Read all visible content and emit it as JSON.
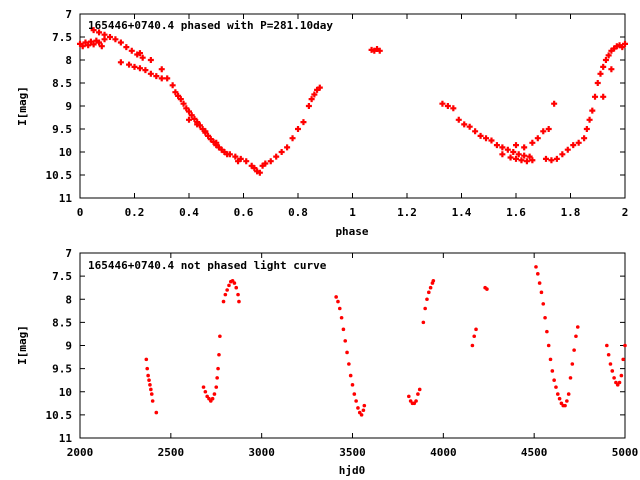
{
  "chart_data": [
    {
      "type": "scatter",
      "title": "165446+0740.4 phased with P=281.10day",
      "xlabel": "phase",
      "ylabel": "I[mag]",
      "xlim": [
        0,
        2
      ],
      "ylim": [
        11,
        7
      ],
      "y_inverted": true,
      "xticks": [
        "0",
        "0.2",
        "0.4",
        "0.6",
        "0.8",
        "1",
        "1.2",
        "1.4",
        "1.6",
        "1.8",
        "2"
      ],
      "xtick_values": [
        0,
        0.2,
        0.4,
        0.6,
        0.8,
        1.0,
        1.2,
        1.4,
        1.6,
        1.8,
        2.0
      ],
      "yticks": [
        "7",
        "7.5",
        "8",
        "8.5",
        "9",
        "9.5",
        "10",
        "10.5",
        "11"
      ],
      "ytick_values": [
        7,
        7.5,
        8,
        8.5,
        9,
        9.5,
        10,
        10.5,
        11
      ],
      "marker": "cross",
      "color": "#ff0000",
      "points": [
        [
          0.0,
          7.65
        ],
        [
          0.01,
          7.7
        ],
        [
          0.02,
          7.62
        ],
        [
          0.03,
          7.68
        ],
        [
          0.04,
          7.6
        ],
        [
          0.05,
          7.66
        ],
        [
          0.06,
          7.58
        ],
        [
          0.07,
          7.62
        ],
        [
          0.08,
          7.7
        ],
        [
          0.09,
          7.55
        ],
        [
          0.05,
          7.35
        ],
        [
          0.07,
          7.4
        ],
        [
          0.09,
          7.45
        ],
        [
          0.11,
          7.5
        ],
        [
          0.13,
          7.55
        ],
        [
          0.15,
          7.62
        ],
        [
          0.17,
          7.72
        ],
        [
          0.19,
          7.8
        ],
        [
          0.21,
          7.88
        ],
        [
          0.23,
          7.95
        ],
        [
          0.15,
          8.05
        ],
        [
          0.18,
          8.1
        ],
        [
          0.2,
          8.15
        ],
        [
          0.22,
          8.18
        ],
        [
          0.24,
          8.22
        ],
        [
          0.26,
          8.3
        ],
        [
          0.28,
          8.35
        ],
        [
          0.3,
          8.4
        ],
        [
          0.22,
          7.85
        ],
        [
          0.26,
          8.0
        ],
        [
          0.3,
          8.2
        ],
        [
          0.32,
          8.4
        ],
        [
          0.34,
          8.55
        ],
        [
          0.35,
          8.7
        ],
        [
          0.36,
          8.78
        ],
        [
          0.37,
          8.85
        ],
        [
          0.38,
          8.95
        ],
        [
          0.39,
          9.05
        ],
        [
          0.4,
          9.12
        ],
        [
          0.41,
          9.2
        ],
        [
          0.42,
          9.28
        ],
        [
          0.43,
          9.35
        ],
        [
          0.44,
          9.42
        ],
        [
          0.45,
          9.5
        ],
        [
          0.46,
          9.58
        ],
        [
          0.47,
          9.65
        ],
        [
          0.48,
          9.72
        ],
        [
          0.49,
          9.78
        ],
        [
          0.5,
          9.85
        ],
        [
          0.51,
          9.9
        ],
        [
          0.52,
          9.95
        ],
        [
          0.53,
          10.0
        ],
        [
          0.55,
          10.05
        ],
        [
          0.57,
          10.1
        ],
        [
          0.59,
          10.15
        ],
        [
          0.61,
          10.2
        ],
        [
          0.63,
          10.3
        ],
        [
          0.64,
          10.35
        ],
        [
          0.65,
          10.42
        ],
        [
          0.66,
          10.45
        ],
        [
          0.67,
          10.3
        ],
        [
          0.68,
          10.25
        ],
        [
          0.7,
          10.2
        ],
        [
          0.72,
          10.1
        ],
        [
          0.74,
          10.0
        ],
        [
          0.76,
          9.9
        ],
        [
          0.78,
          9.7
        ],
        [
          0.8,
          9.5
        ],
        [
          0.82,
          9.35
        ],
        [
          0.84,
          9.0
        ],
        [
          0.85,
          8.85
        ],
        [
          0.86,
          8.75
        ],
        [
          0.87,
          8.65
        ],
        [
          0.88,
          8.6
        ],
        [
          0.4,
          9.3
        ],
        [
          0.43,
          9.4
        ],
        [
          0.46,
          9.55
        ],
        [
          0.5,
          9.8
        ],
        [
          0.54,
          10.05
        ],
        [
          0.58,
          10.2
        ],
        [
          1.07,
          7.78
        ],
        [
          1.08,
          7.8
        ],
        [
          1.09,
          7.76
        ],
        [
          1.1,
          7.8
        ],
        [
          1.33,
          8.95
        ],
        [
          1.35,
          9.0
        ],
        [
          1.37,
          9.05
        ],
        [
          1.39,
          9.3
        ],
        [
          1.41,
          9.4
        ],
        [
          1.43,
          9.45
        ],
        [
          1.45,
          9.55
        ],
        [
          1.47,
          9.65
        ],
        [
          1.49,
          9.7
        ],
        [
          1.51,
          9.75
        ],
        [
          1.53,
          9.85
        ],
        [
          1.55,
          9.9
        ],
        [
          1.57,
          9.95
        ],
        [
          1.59,
          10.0
        ],
        [
          1.61,
          10.05
        ],
        [
          1.63,
          10.08
        ],
        [
          1.65,
          10.1
        ],
        [
          1.55,
          10.05
        ],
        [
          1.58,
          10.12
        ],
        [
          1.6,
          10.15
        ],
        [
          1.62,
          10.18
        ],
        [
          1.64,
          10.2
        ],
        [
          1.66,
          10.18
        ],
        [
          1.6,
          9.85
        ],
        [
          1.63,
          9.9
        ],
        [
          1.66,
          9.8
        ],
        [
          1.68,
          9.7
        ],
        [
          1.7,
          9.55
        ],
        [
          1.72,
          9.5
        ],
        [
          1.74,
          8.95
        ],
        [
          1.71,
          10.15
        ],
        [
          1.73,
          10.18
        ],
        [
          1.75,
          10.15
        ],
        [
          1.77,
          10.05
        ],
        [
          1.79,
          9.95
        ],
        [
          1.81,
          9.85
        ],
        [
          1.83,
          9.8
        ],
        [
          1.85,
          9.7
        ],
        [
          1.86,
          9.5
        ],
        [
          1.87,
          9.3
        ],
        [
          1.88,
          9.1
        ],
        [
          1.89,
          8.8
        ],
        [
          1.9,
          8.5
        ],
        [
          1.91,
          8.3
        ],
        [
          1.92,
          8.15
        ],
        [
          1.93,
          8.0
        ],
        [
          1.94,
          7.9
        ],
        [
          1.95,
          7.8
        ],
        [
          1.96,
          7.75
        ],
        [
          1.97,
          7.7
        ],
        [
          1.98,
          7.68
        ],
        [
          1.99,
          7.72
        ],
        [
          2.0,
          7.65
        ],
        [
          1.92,
          8.8
        ],
        [
          1.95,
          8.2
        ]
      ]
    },
    {
      "type": "scatter",
      "title": "165446+0740.4 not phased light curve",
      "xlabel": "hjd0",
      "ylabel": "I[mag]",
      "xlim": [
        2000,
        5000
      ],
      "ylim": [
        11,
        7
      ],
      "y_inverted": true,
      "xticks": [
        "2000",
        "2500",
        "3000",
        "3500",
        "4000",
        "4500",
        "5000"
      ],
      "xtick_values": [
        2000,
        2500,
        3000,
        3500,
        4000,
        4500,
        5000
      ],
      "yticks": [
        "7",
        "7.5",
        "8",
        "8.5",
        "9",
        "9.5",
        "10",
        "10.5",
        "11"
      ],
      "ytick_values": [
        7,
        7.5,
        8,
        8.5,
        9,
        9.5,
        10,
        10.5,
        11
      ],
      "marker": "dot",
      "color": "#ff0000",
      "points": [
        [
          2365,
          9.3
        ],
        [
          2370,
          9.5
        ],
        [
          2375,
          9.65
        ],
        [
          2380,
          9.75
        ],
        [
          2385,
          9.85
        ],
        [
          2390,
          9.95
        ],
        [
          2395,
          10.05
        ],
        [
          2400,
          10.2
        ],
        [
          2420,
          10.45
        ],
        [
          2680,
          9.9
        ],
        [
          2690,
          10.0
        ],
        [
          2700,
          10.1
        ],
        [
          2710,
          10.15
        ],
        [
          2720,
          10.2
        ],
        [
          2730,
          10.15
        ],
        [
          2740,
          10.05
        ],
        [
          2750,
          9.9
        ],
        [
          2755,
          9.7
        ],
        [
          2760,
          9.5
        ],
        [
          2765,
          9.2
        ],
        [
          2770,
          8.8
        ],
        [
          2790,
          8.05
        ],
        [
          2800,
          7.9
        ],
        [
          2810,
          7.8
        ],
        [
          2820,
          7.7
        ],
        [
          2830,
          7.62
        ],
        [
          2840,
          7.6
        ],
        [
          2850,
          7.65
        ],
        [
          2860,
          7.75
        ],
        [
          2870,
          7.9
        ],
        [
          2875,
          8.05
        ],
        [
          3410,
          7.95
        ],
        [
          3420,
          8.05
        ],
        [
          3430,
          8.2
        ],
        [
          3440,
          8.4
        ],
        [
          3450,
          8.65
        ],
        [
          3460,
          8.9
        ],
        [
          3470,
          9.15
        ],
        [
          3480,
          9.4
        ],
        [
          3490,
          9.65
        ],
        [
          3500,
          9.85
        ],
        [
          3510,
          10.05
        ],
        [
          3520,
          10.2
        ],
        [
          3530,
          10.35
        ],
        [
          3540,
          10.45
        ],
        [
          3550,
          10.5
        ],
        [
          3560,
          10.4
        ],
        [
          3565,
          10.3
        ],
        [
          3810,
          10.1
        ],
        [
          3820,
          10.2
        ],
        [
          3830,
          10.25
        ],
        [
          3840,
          10.25
        ],
        [
          3850,
          10.2
        ],
        [
          3860,
          10.05
        ],
        [
          3870,
          9.95
        ],
        [
          3890,
          8.5
        ],
        [
          3900,
          8.2
        ],
        [
          3910,
          8.0
        ],
        [
          3920,
          7.85
        ],
        [
          3930,
          7.75
        ],
        [
          3940,
          7.65
        ],
        [
          3945,
          7.6
        ],
        [
          4160,
          9.0
        ],
        [
          4170,
          8.8
        ],
        [
          4180,
          8.65
        ],
        [
          4230,
          7.75
        ],
        [
          4240,
          7.78
        ],
        [
          4510,
          7.3
        ],
        [
          4520,
          7.45
        ],
        [
          4530,
          7.65
        ],
        [
          4540,
          7.85
        ],
        [
          4550,
          8.1
        ],
        [
          4560,
          8.4
        ],
        [
          4570,
          8.7
        ],
        [
          4580,
          9.0
        ],
        [
          4590,
          9.3
        ],
        [
          4600,
          9.55
        ],
        [
          4610,
          9.75
        ],
        [
          4620,
          9.9
        ],
        [
          4630,
          10.05
        ],
        [
          4640,
          10.15
        ],
        [
          4650,
          10.25
        ],
        [
          4660,
          10.3
        ],
        [
          4670,
          10.3
        ],
        [
          4680,
          10.2
        ],
        [
          4690,
          10.05
        ],
        [
          4700,
          9.7
        ],
        [
          4710,
          9.4
        ],
        [
          4720,
          9.1
        ],
        [
          4730,
          8.8
        ],
        [
          4740,
          8.6
        ],
        [
          4900,
          9.0
        ],
        [
          4910,
          9.2
        ],
        [
          4920,
          9.4
        ],
        [
          4930,
          9.55
        ],
        [
          4940,
          9.7
        ],
        [
          4950,
          9.8
        ],
        [
          4960,
          9.85
        ],
        [
          4970,
          9.8
        ],
        [
          4980,
          9.65
        ],
        [
          4990,
          9.3
        ],
        [
          5000,
          9.0
        ]
      ]
    }
  ]
}
